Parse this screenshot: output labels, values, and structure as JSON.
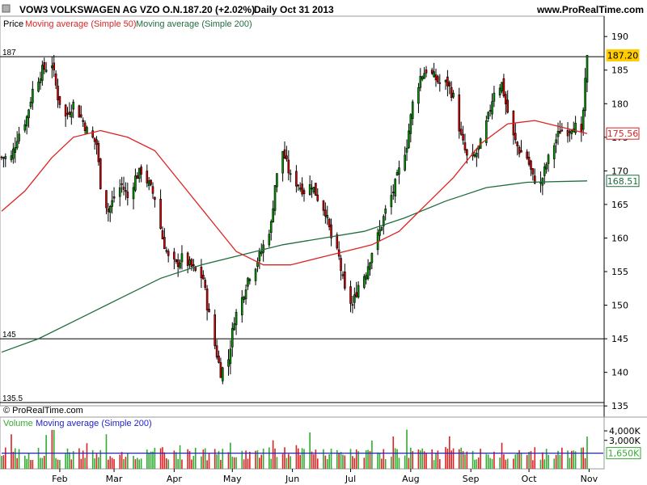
{
  "header": {
    "ticker": "VOW3",
    "name": "VOLKSWAGEN AG VZO O.N.",
    "quote": "187.20 (+2.02%)",
    "period_date": "Daily  Oct 31 2013",
    "site": "www.ProRealTime.com"
  },
  "price_panel": {
    "label": "Price",
    "ma50_label": "Moving average (Simple 50)",
    "ma200_label": "Moving average (Simple 200)",
    "copyright": "© ProRealTime.com"
  },
  "volume_panel": {
    "label": "Volume",
    "ma_label": "Moving average (Simple 200)"
  },
  "colors": {
    "ma50": "#dd2222",
    "ma200": "#1e6e3c",
    "up_candle": "#009900",
    "down_candle": "#dd0000",
    "volume_ma": "#2222cc",
    "last_price_box": "#ffcc00"
  },
  "chart_data": {
    "type": "candlestick",
    "title": "VOW3 - VOLKSWAGEN AG VZO O.N.",
    "interval": "Daily",
    "ylim": [
      134,
      192
    ],
    "y_ticks": [
      135,
      140,
      145,
      150,
      155,
      160,
      165,
      170,
      175,
      180,
      185,
      190
    ],
    "x_ticks": [
      "Feb",
      "Mar",
      "Apr",
      "May",
      "Jun",
      "Jul",
      "Aug",
      "Sep",
      "Oct",
      "Nov"
    ],
    "horizontal_levels": [
      {
        "label": "187",
        "value": 187
      },
      {
        "label": "145",
        "value": 145
      },
      {
        "label": "135.5",
        "value": 135.5
      }
    ],
    "last_values": [
      {
        "label": "187.20",
        "value": 187.2,
        "series": "price"
      },
      {
        "label": "175.56",
        "value": 175.56,
        "series": "ma50"
      },
      {
        "label": "168.51",
        "value": 168.51,
        "series": "ma200"
      }
    ],
    "close_path": [
      {
        "x": "2013-01-07",
        "y": 172
      },
      {
        "x": "2013-01-10",
        "y": 175
      },
      {
        "x": "2013-01-15",
        "y": 178
      },
      {
        "x": "2013-01-18",
        "y": 182
      },
      {
        "x": "2013-01-23",
        "y": 185
      },
      {
        "x": "2013-01-28",
        "y": 186
      },
      {
        "x": "2013-01-31",
        "y": 181
      },
      {
        "x": "2013-02-04",
        "y": 178
      },
      {
        "x": "2013-02-08",
        "y": 180
      },
      {
        "x": "2013-02-12",
        "y": 178
      },
      {
        "x": "2013-02-15",
        "y": 176
      },
      {
        "x": "2013-02-20",
        "y": 174
      },
      {
        "x": "2013-02-22",
        "y": 168
      },
      {
        "x": "2013-02-26",
        "y": 164
      },
      {
        "x": "2013-03-01",
        "y": 166
      },
      {
        "x": "2013-03-05",
        "y": 168
      },
      {
        "x": "2013-03-08",
        "y": 166
      },
      {
        "x": "2013-03-12",
        "y": 169
      },
      {
        "x": "2013-03-15",
        "y": 170
      },
      {
        "x": "2013-03-19",
        "y": 168
      },
      {
        "x": "2013-03-22",
        "y": 166
      },
      {
        "x": "2013-03-26",
        "y": 160
      },
      {
        "x": "2013-03-29",
        "y": 157
      },
      {
        "x": "2013-04-02",
        "y": 156
      },
      {
        "x": "2013-04-05",
        "y": 157
      },
      {
        "x": "2013-04-09",
        "y": 156
      },
      {
        "x": "2013-04-12",
        "y": 155
      },
      {
        "x": "2013-04-16",
        "y": 154
      },
      {
        "x": "2013-04-18",
        "y": 150
      },
      {
        "x": "2013-04-22",
        "y": 144
      },
      {
        "x": "2013-04-25",
        "y": 140
      },
      {
        "x": "2013-04-29",
        "y": 142
      },
      {
        "x": "2013-05-02",
        "y": 148
      },
      {
        "x": "2013-05-06",
        "y": 151
      },
      {
        "x": "2013-05-09",
        "y": 154
      },
      {
        "x": "2013-05-13",
        "y": 156
      },
      {
        "x": "2013-05-16",
        "y": 158
      },
      {
        "x": "2013-05-21",
        "y": 162
      },
      {
        "x": "2013-05-23",
        "y": 168
      },
      {
        "x": "2013-05-27",
        "y": 173
      },
      {
        "x": "2013-05-31",
        "y": 169
      },
      {
        "x": "2013-06-04",
        "y": 168
      },
      {
        "x": "2013-06-07",
        "y": 167
      },
      {
        "x": "2013-06-11",
        "y": 168
      },
      {
        "x": "2013-06-14",
        "y": 166
      },
      {
        "x": "2013-06-18",
        "y": 164
      },
      {
        "x": "2013-06-21",
        "y": 160
      },
      {
        "x": "2013-06-25",
        "y": 157
      },
      {
        "x": "2013-06-28",
        "y": 152
      },
      {
        "x": "2013-07-02",
        "y": 150
      },
      {
        "x": "2013-07-05",
        "y": 153
      },
      {
        "x": "2013-07-09",
        "y": 155
      },
      {
        "x": "2013-07-12",
        "y": 158
      },
      {
        "x": "2013-07-16",
        "y": 161
      },
      {
        "x": "2013-07-19",
        "y": 164
      },
      {
        "x": "2013-07-23",
        "y": 167
      },
      {
        "x": "2013-07-26",
        "y": 170
      },
      {
        "x": "2013-07-30",
        "y": 174
      },
      {
        "x": "2013-08-02",
        "y": 180
      },
      {
        "x": "2013-08-06",
        "y": 184
      },
      {
        "x": "2013-08-09",
        "y": 185
      },
      {
        "x": "2013-08-13",
        "y": 184
      },
      {
        "x": "2013-08-16",
        "y": 183
      },
      {
        "x": "2013-08-20",
        "y": 183
      },
      {
        "x": "2013-08-23",
        "y": 181
      },
      {
        "x": "2013-08-27",
        "y": 175
      },
      {
        "x": "2013-08-30",
        "y": 172
      },
      {
        "x": "2013-09-03",
        "y": 172
      },
      {
        "x": "2013-09-06",
        "y": 174
      },
      {
        "x": "2013-09-10",
        "y": 178
      },
      {
        "x": "2013-09-13",
        "y": 182
      },
      {
        "x": "2013-09-17",
        "y": 183
      },
      {
        "x": "2013-09-19",
        "y": 180
      },
      {
        "x": "2013-09-23",
        "y": 175
      },
      {
        "x": "2013-09-26",
        "y": 173
      },
      {
        "x": "2013-09-30",
        "y": 172
      },
      {
        "x": "2013-10-03",
        "y": 169
      },
      {
        "x": "2013-10-07",
        "y": 168
      },
      {
        "x": "2013-10-10",
        "y": 171
      },
      {
        "x": "2013-10-14",
        "y": 174
      },
      {
        "x": "2013-10-17",
        "y": 176
      },
      {
        "x": "2013-10-21",
        "y": 176
      },
      {
        "x": "2013-10-24",
        "y": 177
      },
      {
        "x": "2013-10-28",
        "y": 175
      },
      {
        "x": "2013-10-30",
        "y": 183
      },
      {
        "x": "2013-10-31",
        "y": 187.2
      }
    ],
    "series": [
      {
        "name": "Moving average (Simple 50)",
        "points": [
          {
            "x": "2013-01-02",
            "y": 164
          },
          {
            "x": "2013-01-14",
            "y": 167
          },
          {
            "x": "2013-01-28",
            "y": 172
          },
          {
            "x": "2013-02-08",
            "y": 175
          },
          {
            "x": "2013-02-22",
            "y": 176
          },
          {
            "x": "2013-03-08",
            "y": 175
          },
          {
            "x": "2013-03-22",
            "y": 173
          },
          {
            "x": "2013-04-05",
            "y": 168
          },
          {
            "x": "2013-04-19",
            "y": 163
          },
          {
            "x": "2013-05-03",
            "y": 158
          },
          {
            "x": "2013-05-17",
            "y": 156
          },
          {
            "x": "2013-05-31",
            "y": 156
          },
          {
            "x": "2013-06-14",
            "y": 157
          },
          {
            "x": "2013-06-28",
            "y": 158
          },
          {
            "x": "2013-07-12",
            "y": 159
          },
          {
            "x": "2013-07-26",
            "y": 161
          },
          {
            "x": "2013-08-09",
            "y": 165
          },
          {
            "x": "2013-08-23",
            "y": 169
          },
          {
            "x": "2013-09-06",
            "y": 174
          },
          {
            "x": "2013-09-20",
            "y": 177
          },
          {
            "x": "2013-10-04",
            "y": 177.5
          },
          {
            "x": "2013-10-18",
            "y": 176.5
          },
          {
            "x": "2013-10-31",
            "y": 175.56
          }
        ]
      },
      {
        "name": "Moving average (Simple 200)",
        "points": [
          {
            "x": "2013-01-02",
            "y": 143
          },
          {
            "x": "2013-01-21",
            "y": 145
          },
          {
            "x": "2013-02-11",
            "y": 148
          },
          {
            "x": "2013-03-04",
            "y": 151
          },
          {
            "x": "2013-03-25",
            "y": 154
          },
          {
            "x": "2013-04-15",
            "y": 156
          },
          {
            "x": "2013-05-06",
            "y": 157.5
          },
          {
            "x": "2013-05-27",
            "y": 159
          },
          {
            "x": "2013-06-17",
            "y": 160
          },
          {
            "x": "2013-07-08",
            "y": 161
          },
          {
            "x": "2013-07-29",
            "y": 163
          },
          {
            "x": "2013-08-19",
            "y": 165.5
          },
          {
            "x": "2013-09-09",
            "y": 167.5
          },
          {
            "x": "2013-09-30",
            "y": 168.3
          },
          {
            "x": "2013-10-31",
            "y": 168.51
          }
        ]
      }
    ],
    "volume": {
      "y_ticks": [
        "4,000K",
        "3,000K"
      ],
      "last_value": "1,650K",
      "ma200_approx": 1650
    }
  }
}
